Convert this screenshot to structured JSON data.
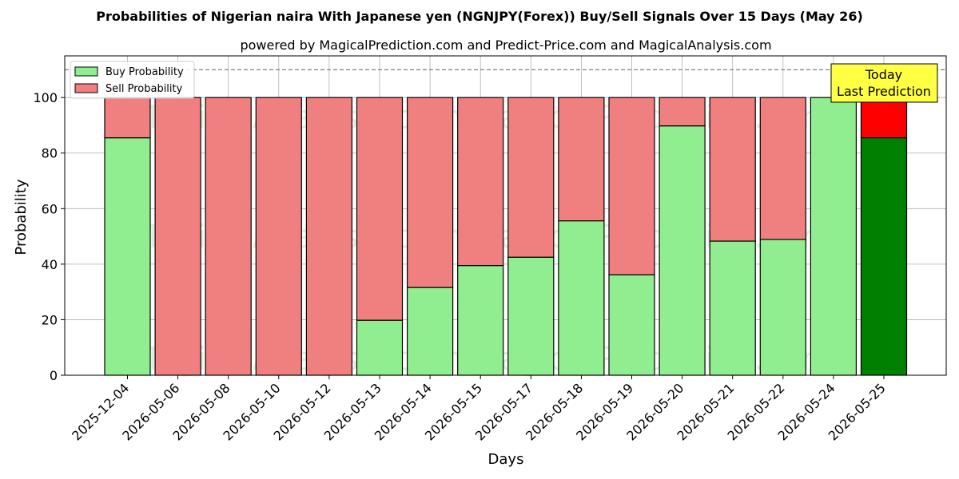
{
  "chart_data": {
    "type": "bar",
    "stacked": true,
    "title": "Probabilities of Nigerian naira With Japanese yen (NGNJPY(Forex)) Buy/Sell Signals Over 15 Days (May 26)",
    "subtitle": "powered by MagicalPrediction.com and Predict-Price.com and MagicalAnalysis.com",
    "xlabel": "Days",
    "ylabel": "Probability",
    "ylim": [
      0,
      115
    ],
    "yticks": [
      0,
      20,
      40,
      60,
      80,
      100
    ],
    "grid": true,
    "legend": "top-left",
    "reference_line": 110,
    "categories": [
      "2025-12-04",
      "2026-05-06",
      "2026-05-08",
      "2026-05-10",
      "2026-05-12",
      "2026-05-13",
      "2026-05-14",
      "2026-05-15",
      "2026-05-17",
      "2026-05-18",
      "2026-05-19",
      "2026-05-20",
      "2026-05-21",
      "2026-05-22",
      "2026-05-24",
      "2026-05-25"
    ],
    "series": [
      {
        "name": "Buy Probability",
        "color": "#90ee90",
        "values": [
          85.5,
          0,
          0,
          0,
          0,
          19.8,
          31.6,
          39.5,
          42.5,
          55.6,
          36.2,
          89.8,
          48.3,
          48.9,
          100,
          85.5
        ]
      },
      {
        "name": "Sell Probability",
        "color": "#f08080",
        "values": [
          14.5,
          100,
          100,
          100,
          100,
          80.2,
          68.4,
          60.5,
          57.5,
          44.4,
          63.8,
          10.2,
          51.7,
          51.1,
          0,
          14.5
        ]
      }
    ],
    "highlight": {
      "index": 15,
      "buy_color": "#008000",
      "sell_color": "#ff0000"
    },
    "annotation": {
      "lines": [
        "Today",
        "Last Prediction"
      ],
      "color": "#ffff44"
    },
    "watermark": "MagicalAnalysis.com    MagicalPrediction.com"
  }
}
